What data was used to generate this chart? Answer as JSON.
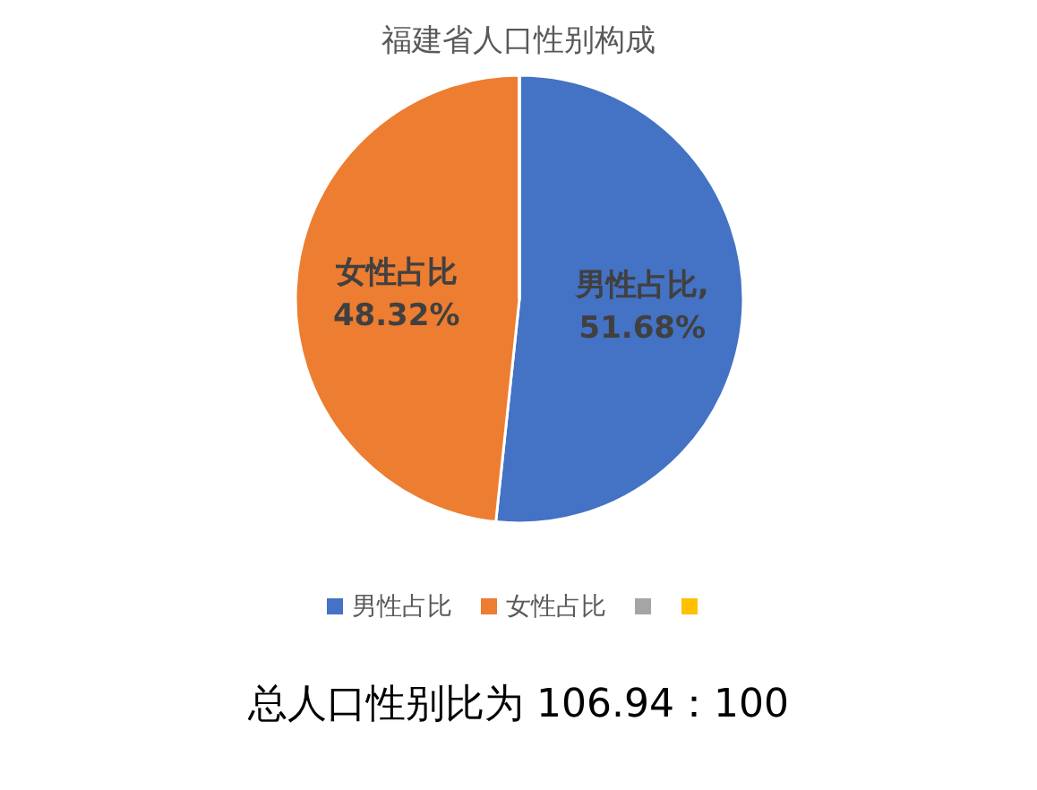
{
  "chart_data": {
    "type": "pie",
    "title": "福建省人口性别构成",
    "categories": [
      "男性占比",
      "女性占比",
      null,
      null
    ],
    "values": [
      51.68,
      48.32,
      0,
      0
    ],
    "colors": [
      "#4472c4",
      "#ed7d31",
      "#a5a5a5",
      "#ffc000"
    ],
    "value_labels": [
      "男性占比, 51.68%",
      "女性占比 48.32%",
      null,
      null
    ],
    "legend": "bottom",
    "annotations": [
      "总人口性别比为 106.94：100"
    ]
  }
}
